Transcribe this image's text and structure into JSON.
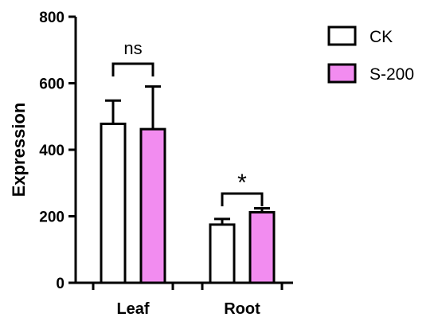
{
  "chart_data": {
    "type": "bar",
    "categories": [
      "Leaf",
      "Root"
    ],
    "series": [
      {
        "name": "CK",
        "color": "#ffffff",
        "values": [
          478,
          175
        ],
        "errors": [
          70,
          17
        ]
      },
      {
        "name": "S-200",
        "color": "#f28cf0",
        "values": [
          462,
          212
        ],
        "errors": [
          128,
          12
        ]
      }
    ],
    "ylabel": "Expression",
    "xlabel": "",
    "ylim": [
      0,
      800
    ],
    "yticks": [
      0,
      200,
      400,
      600,
      800
    ],
    "significance": [
      {
        "category": "Leaf",
        "label": "ns"
      },
      {
        "category": "Root",
        "label": "*"
      }
    ],
    "legend_position": "top-right",
    "grid": false
  }
}
